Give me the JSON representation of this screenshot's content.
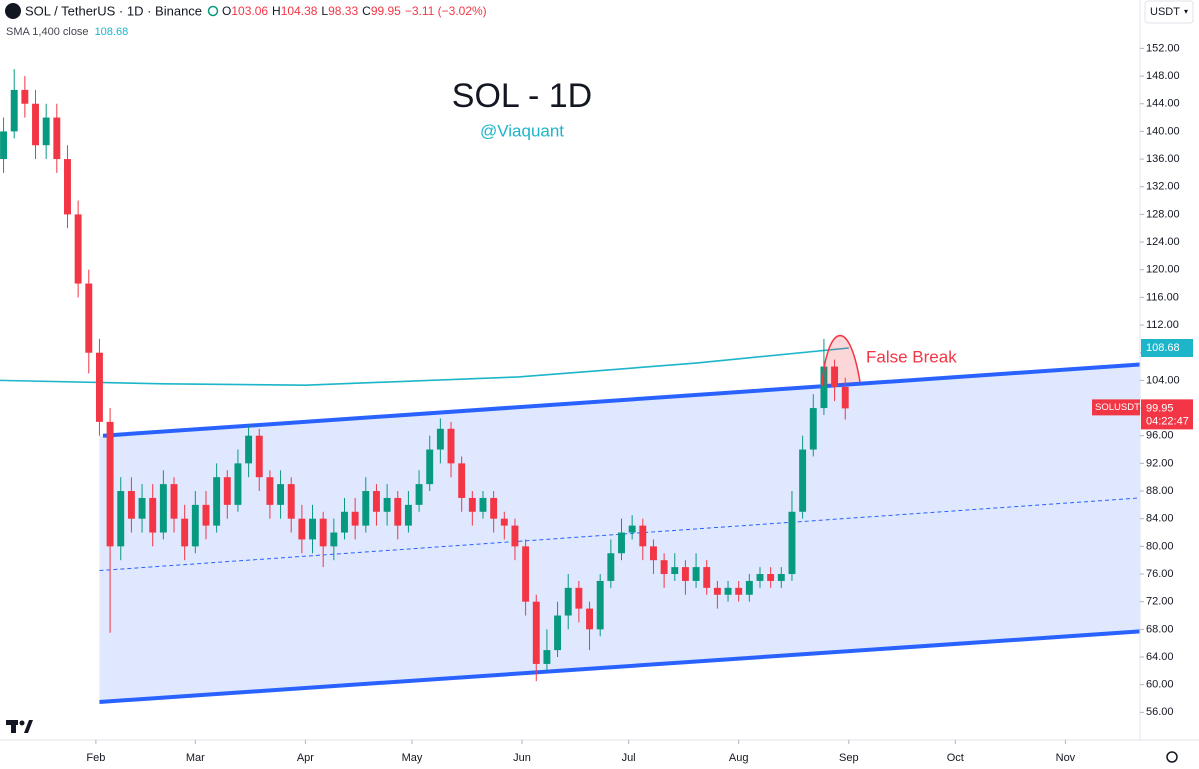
{
  "header": {
    "symbol": "SOL / TetherUS · 1D · Binance",
    "o_label": "O",
    "h_label": "H",
    "l_label": "L",
    "c_label": "C",
    "change": "−3.11 (−3.02%)",
    "currency": "USDT"
  },
  "chart_data": {
    "type": "candlestick",
    "title": "SOL - 1D",
    "subtitle": "@Viaquant",
    "annotation": "False Break",
    "symbol_label": "SOLUSDT",
    "countdown": "04:22:47",
    "up_color": "#089981",
    "down_color": "#f23645",
    "x": [
      5,
      8,
      11,
      14,
      17,
      20,
      23,
      26,
      29,
      32,
      35,
      38,
      41,
      44,
      47,
      50,
      53,
      56,
      59,
      62,
      65,
      68,
      71,
      74,
      77,
      80,
      83,
      86,
      89,
      92,
      95,
      98,
      101,
      104,
      107,
      110,
      113,
      116,
      119,
      122,
      125,
      128,
      131,
      134,
      137,
      140,
      143,
      146,
      149,
      152,
      155,
      158,
      161,
      164,
      167,
      170,
      173,
      176,
      179,
      182,
      185,
      188,
      191,
      194,
      197,
      200,
      203,
      206,
      209,
      212,
      215,
      218,
      221,
      224,
      227,
      230,
      233,
      236,
      239,
      242
    ],
    "open": [
      136,
      140,
      146,
      144,
      138,
      142,
      136,
      128,
      118,
      108,
      98,
      80,
      88,
      84,
      87,
      82,
      89,
      84,
      80,
      86,
      83,
      90,
      86,
      92,
      96,
      90,
      86,
      89,
      84,
      81,
      84,
      80,
      82,
      85,
      83,
      88,
      85,
      87,
      83,
      86,
      89,
      94,
      97,
      92,
      87,
      85,
      87,
      84,
      83,
      80,
      72,
      63,
      65,
      70,
      74,
      71,
      68,
      75,
      79,
      82,
      83,
      80,
      78,
      76,
      77,
      75,
      77,
      74,
      73,
      74,
      73,
      75,
      76,
      75,
      76,
      85,
      94,
      100,
      106,
      103.06
    ],
    "high": [
      142,
      149,
      148,
      146,
      144,
      144,
      138,
      130,
      120,
      110,
      100,
      90,
      90,
      89,
      89,
      91,
      90,
      86,
      88,
      88,
      92,
      91,
      94,
      97.5,
      97,
      91,
      91,
      90,
      86,
      86,
      85,
      84,
      87,
      87,
      90,
      89,
      89,
      88,
      88,
      91,
      96,
      98.5,
      98,
      93,
      88,
      88,
      88,
      85,
      84,
      81,
      73,
      68,
      72,
      76,
      75,
      72,
      76,
      81,
      84,
      84.5,
      84,
      81,
      79,
      79,
      78,
      79,
      78,
      75,
      75,
      75,
      76,
      77,
      77,
      77,
      88,
      96,
      102,
      110,
      107,
      104.38
    ],
    "low": [
      134,
      139,
      142,
      136,
      136,
      134,
      126,
      116,
      105,
      96,
      67.5,
      78,
      82,
      82,
      80,
      81,
      82,
      78,
      79,
      81,
      82,
      84,
      85,
      90,
      88,
      84,
      84,
      82,
      79,
      79,
      77,
      78,
      81,
      81,
      82,
      83,
      83,
      81,
      82,
      85,
      88,
      92,
      90,
      85,
      83,
      84,
      82,
      81,
      78,
      70,
      60.5,
      62,
      64,
      68,
      69,
      65,
      67,
      74,
      78,
      81,
      78,
      76,
      74,
      75,
      73,
      74,
      73,
      71,
      72,
      72,
      72,
      74,
      74,
      74,
      75,
      84,
      93,
      99,
      101,
      98.33
    ],
    "close": [
      140,
      146,
      144,
      138,
      142,
      136,
      128,
      118,
      108,
      98,
      80,
      88,
      84,
      87,
      82,
      89,
      84,
      80,
      86,
      83,
      90,
      86,
      92,
      96,
      90,
      86,
      89,
      84,
      81,
      84,
      80,
      82,
      85,
      83,
      88,
      85,
      87,
      83,
      86,
      89,
      94,
      97,
      92,
      87,
      85,
      87,
      84,
      83,
      80,
      72,
      63,
      65,
      70,
      74,
      71,
      68,
      75,
      79,
      82,
      83,
      80,
      78,
      76,
      77,
      75,
      77,
      74,
      73,
      74,
      73,
      75,
      76,
      75,
      76,
      85,
      94,
      100,
      106,
      103.06,
      99.95
    ],
    "sma": {
      "name": "SMA 1,400 close",
      "color": "#1cb5c9",
      "x": [
        4,
        50,
        90,
        150,
        200,
        243
      ],
      "values": [
        104,
        103.5,
        103.3,
        104.5,
        106.5,
        108.68
      ]
    },
    "channel": {
      "color": "#2962ff",
      "upper": [
        [
          33,
          96
        ],
        [
          325,
          106.3
        ]
      ],
      "middle": [
        [
          32,
          76.5
        ],
        [
          325,
          87
        ]
      ],
      "lower": [
        [
          32,
          57.5
        ],
        [
          325,
          67.7
        ]
      ]
    },
    "xlim": [
      4,
      325
    ],
    "ylim": [
      52,
      159
    ],
    "xticks": [
      {
        "value": 31,
        "label": "Feb"
      },
      {
        "value": 59,
        "label": "Mar"
      },
      {
        "value": 90,
        "label": "Apr"
      },
      {
        "value": 120,
        "label": "May"
      },
      {
        "value": 151,
        "label": "Jun"
      },
      {
        "value": 181,
        "label": "Jul"
      },
      {
        "value": 212,
        "label": "Aug"
      },
      {
        "value": 243,
        "label": "Sep"
      },
      {
        "value": 273,
        "label": "Oct"
      },
      {
        "value": 304,
        "label": "Nov"
      }
    ],
    "yticks": [
      {
        "value": 56,
        "label": "56.00"
      },
      {
        "value": 60,
        "label": "60.00"
      },
      {
        "value": 64,
        "label": "64.00"
      },
      {
        "value": 68,
        "label": "68.00"
      },
      {
        "value": 72,
        "label": "72.00"
      },
      {
        "value": 76,
        "label": "76.00"
      },
      {
        "value": 80,
        "label": "80.00"
      },
      {
        "value": 84,
        "label": "84.00"
      },
      {
        "value": 88,
        "label": "88.00"
      },
      {
        "value": 92,
        "label": "92.00"
      },
      {
        "value": 96,
        "label": "96.00"
      },
      {
        "value": 100,
        "label": "100.00"
      },
      {
        "value": 104,
        "label": "104.00"
      },
      {
        "value": 108,
        "label": "108.00"
      },
      {
        "value": 112,
        "label": "112.00"
      },
      {
        "value": 116,
        "label": "116.00"
      },
      {
        "value": 120,
        "label": "120.00"
      },
      {
        "value": 124,
        "label": "124.00"
      },
      {
        "value": 128,
        "label": "128.00"
      },
      {
        "value": 132,
        "label": "132.00"
      },
      {
        "value": 136,
        "label": "136.00"
      },
      {
        "value": 140,
        "label": "140.00"
      },
      {
        "value": 144,
        "label": "144.00"
      },
      {
        "value": 148,
        "label": "148.00"
      },
      {
        "value": 152,
        "label": "152.00"
      }
    ]
  }
}
